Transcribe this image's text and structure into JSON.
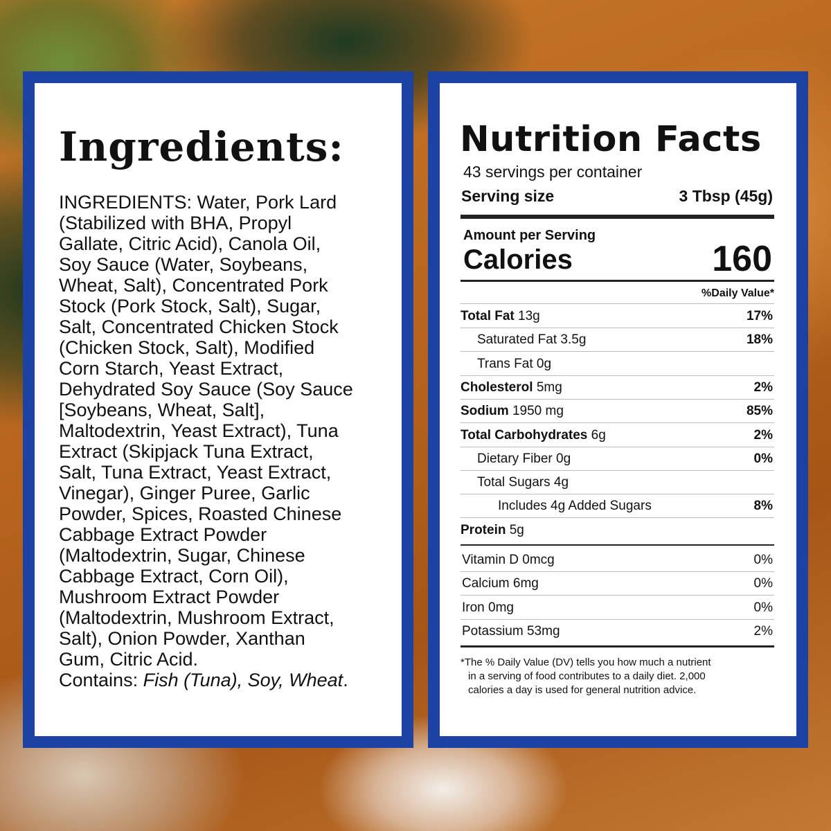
{
  "ingredients": {
    "title": "Ingredients:",
    "lines": [
      "INGREDIENTS: Water, Pork Lard",
      "(Stabilized with BHA, Propyl",
      "Gallate, Citric Acid), Canola Oil,",
      "Soy Sauce (Water, Soybeans,",
      "Wheat, Salt), Concentrated Pork",
      "Stock (Pork Stock, Salt), Sugar,",
      "Salt, Concentrated Chicken Stock",
      "(Chicken Stock, Salt), Modified",
      "Corn Starch, Yeast Extract,",
      "Dehydrated Soy Sauce (Soy Sauce",
      "[Soybeans, Wheat, Salt],",
      "Maltodextrin, Yeast Extract), Tuna",
      "Extract (Skipjack Tuna Extract,",
      "Salt, Tuna Extract, Yeast Extract,",
      "Vinegar), Ginger Puree, Garlic",
      "Powder, Spices, Roasted Chinese",
      "Cabbage Extract Powder",
      "(Maltodextrin, Sugar, Chinese",
      "Cabbage Extract, Corn Oil),",
      "Mushroom Extract Powder",
      "(Maltodextrin, Mushroom Extract,",
      "Salt), Onion Powder, Xanthan",
      "Gum, Citric Acid."
    ],
    "contains": {
      "label": "Contains:",
      "allergens": "Fish (Tuna), Soy, Wheat",
      "end": "."
    }
  },
  "nutrition": {
    "title": "Nutrition Facts",
    "servings": "43 servings per container",
    "serving_size_label": "Serving size",
    "serving_size": "3 Tbsp (45g)",
    "amount_per_serving": "Amount per Serving",
    "calories_label": "Calories",
    "calories": 160,
    "daily_value_header": "%Daily Value*",
    "rows": [
      {
        "label": "Total Fat",
        "amount": "13g",
        "dv": "17%"
      },
      {
        "label": "Saturated Fat",
        "amount": "3.5g",
        "dv": "18%"
      },
      {
        "label": "Trans Fat",
        "amount": "0g"
      },
      {
        "label": "Cholesterol",
        "amount": "5mg",
        "dv": "2%"
      },
      {
        "label": "Sodium",
        "amount": "1950 mg",
        "dv": "85%"
      },
      {
        "label": "Total Carbohydrates",
        "amount": "6g",
        "dv": "2%"
      },
      {
        "label": "Dietary Fiber",
        "amount": "0g",
        "dv": "0%"
      },
      {
        "label": "Total Sugars",
        "amount": "4g"
      },
      {
        "label": "Includes 4g Added Sugars",
        "dv": "8%"
      },
      {
        "label": "Protein",
        "amount": "5g"
      }
    ],
    "vitamins": [
      {
        "label": "Vitamin D 0mcg",
        "dv": "0%"
      },
      {
        "label": "Calcium 6mg",
        "dv": "0%"
      },
      {
        "label": "Iron 0mg",
        "dv": "0%"
      },
      {
        "label": "Potassium 53mg",
        "dv": "2%"
      }
    ],
    "footnote": [
      "*The % Daily Value (DV) tells you how much a nutrient",
      "in a serving of food contributes to a daily diet. 2,000",
      "calories a day is used for general nutrition advice."
    ]
  }
}
